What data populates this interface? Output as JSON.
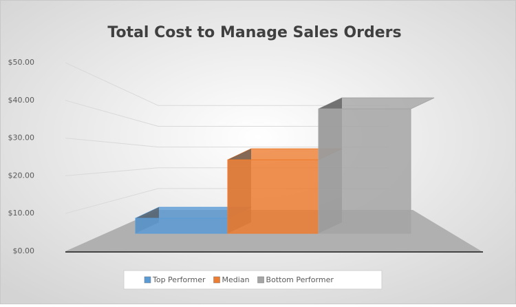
{
  "chart_data": {
    "type": "bar3d",
    "title": "Total Cost to Manage Sales Orders",
    "categories": [
      "Top Performer",
      "Median",
      "Bottom Performer"
    ],
    "values": [
      4,
      19.5,
      33
    ],
    "colors": [
      "#5b9bd5",
      "#ed7d31",
      "#a5a5a5"
    ],
    "ylim": [
      0,
      50
    ],
    "yticks": [
      {
        "value": 0,
        "label": "$0.00"
      },
      {
        "value": 10,
        "label": "$10.00"
      },
      {
        "value": 20,
        "label": "$20.00"
      },
      {
        "value": 30,
        "label": "$30.00"
      },
      {
        "value": 40,
        "label": "$40.00"
      },
      {
        "value": 50,
        "label": "$50.00"
      }
    ],
    "grid": true,
    "legend": "bottom"
  }
}
